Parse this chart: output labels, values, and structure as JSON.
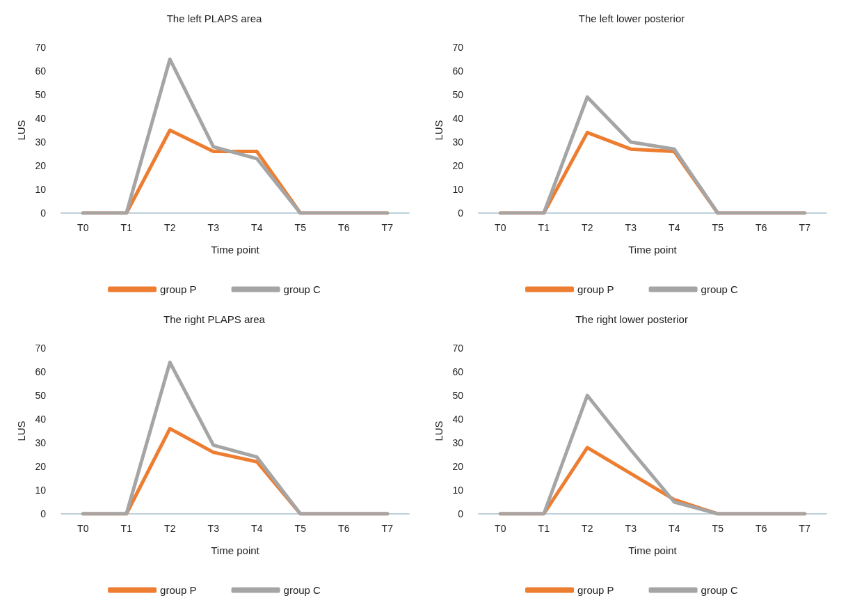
{
  "chart_data": [
    {
      "type": "line",
      "title": "The left PLAPS area",
      "xlabel": "Time point",
      "ylabel": "LUS",
      "categories": [
        "T0",
        "T1",
        "T2",
        "T3",
        "T4",
        "T5",
        "T6",
        "T7"
      ],
      "ylim": [
        0,
        70
      ],
      "yticks": [
        0,
        10,
        20,
        30,
        40,
        50,
        60,
        70
      ],
      "grid": false,
      "legend": "bottom",
      "marker": "none",
      "line_style": "solid",
      "series": [
        {
          "name": "group P",
          "color": "#ed7d31",
          "values": [
            0,
            0,
            35,
            26,
            26,
            0,
            0,
            0
          ]
        },
        {
          "name": "group C",
          "color": "#a5a5a5",
          "values": [
            0,
            0,
            65,
            28,
            23,
            0,
            0,
            0
          ]
        }
      ]
    },
    {
      "type": "line",
      "title": "The left lower posterior",
      "xlabel": "Time point",
      "ylabel": "LUS",
      "categories": [
        "T0",
        "T1",
        "T2",
        "T3",
        "T4",
        "T5",
        "T6",
        "T7"
      ],
      "ylim": [
        0,
        70
      ],
      "yticks": [
        0,
        10,
        20,
        30,
        40,
        50,
        60,
        70
      ],
      "grid": false,
      "legend": "bottom",
      "marker": "none",
      "line_style": "solid",
      "series": [
        {
          "name": "group P",
          "color": "#ed7d31",
          "values": [
            0,
            0,
            34,
            27,
            26,
            0,
            0,
            0
          ]
        },
        {
          "name": "group C",
          "color": "#a5a5a5",
          "values": [
            0,
            0,
            49,
            30,
            27,
            0,
            0,
            0
          ]
        }
      ]
    },
    {
      "type": "line",
      "title": "The right PLAPS area",
      "xlabel": "Time point",
      "ylabel": "LUS",
      "categories": [
        "T0",
        "T1",
        "T2",
        "T3",
        "T4",
        "T5",
        "T6",
        "T7"
      ],
      "ylim": [
        0,
        70
      ],
      "yticks": [
        0,
        10,
        20,
        30,
        40,
        50,
        60,
        70
      ],
      "grid": false,
      "legend": "bottom",
      "marker": "none",
      "line_style": "solid",
      "series": [
        {
          "name": "group P",
          "color": "#ed7d31",
          "values": [
            0,
            0,
            36,
            26,
            22,
            0,
            0,
            0
          ]
        },
        {
          "name": "group C",
          "color": "#a5a5a5",
          "values": [
            0,
            0,
            64,
            29,
            24,
            0,
            0,
            0
          ]
        }
      ]
    },
    {
      "type": "line",
      "title": "The right lower posterior",
      "xlabel": "Time point",
      "ylabel": "LUS",
      "categories": [
        "T0",
        "T1",
        "T2",
        "T3",
        "T4",
        "T5",
        "T6",
        "T7"
      ],
      "ylim": [
        0,
        70
      ],
      "yticks": [
        0,
        10,
        20,
        30,
        40,
        50,
        60,
        70
      ],
      "grid": false,
      "legend": "bottom",
      "marker": "none",
      "line_style": "solid",
      "series": [
        {
          "name": "group P",
          "color": "#ed7d31",
          "values": [
            0,
            0,
            28,
            17,
            6,
            0,
            0,
            0
          ]
        },
        {
          "name": "group C",
          "color": "#a5a5a5",
          "values": [
            0,
            0,
            50,
            27,
            5,
            0,
            0,
            0
          ]
        }
      ]
    }
  ]
}
